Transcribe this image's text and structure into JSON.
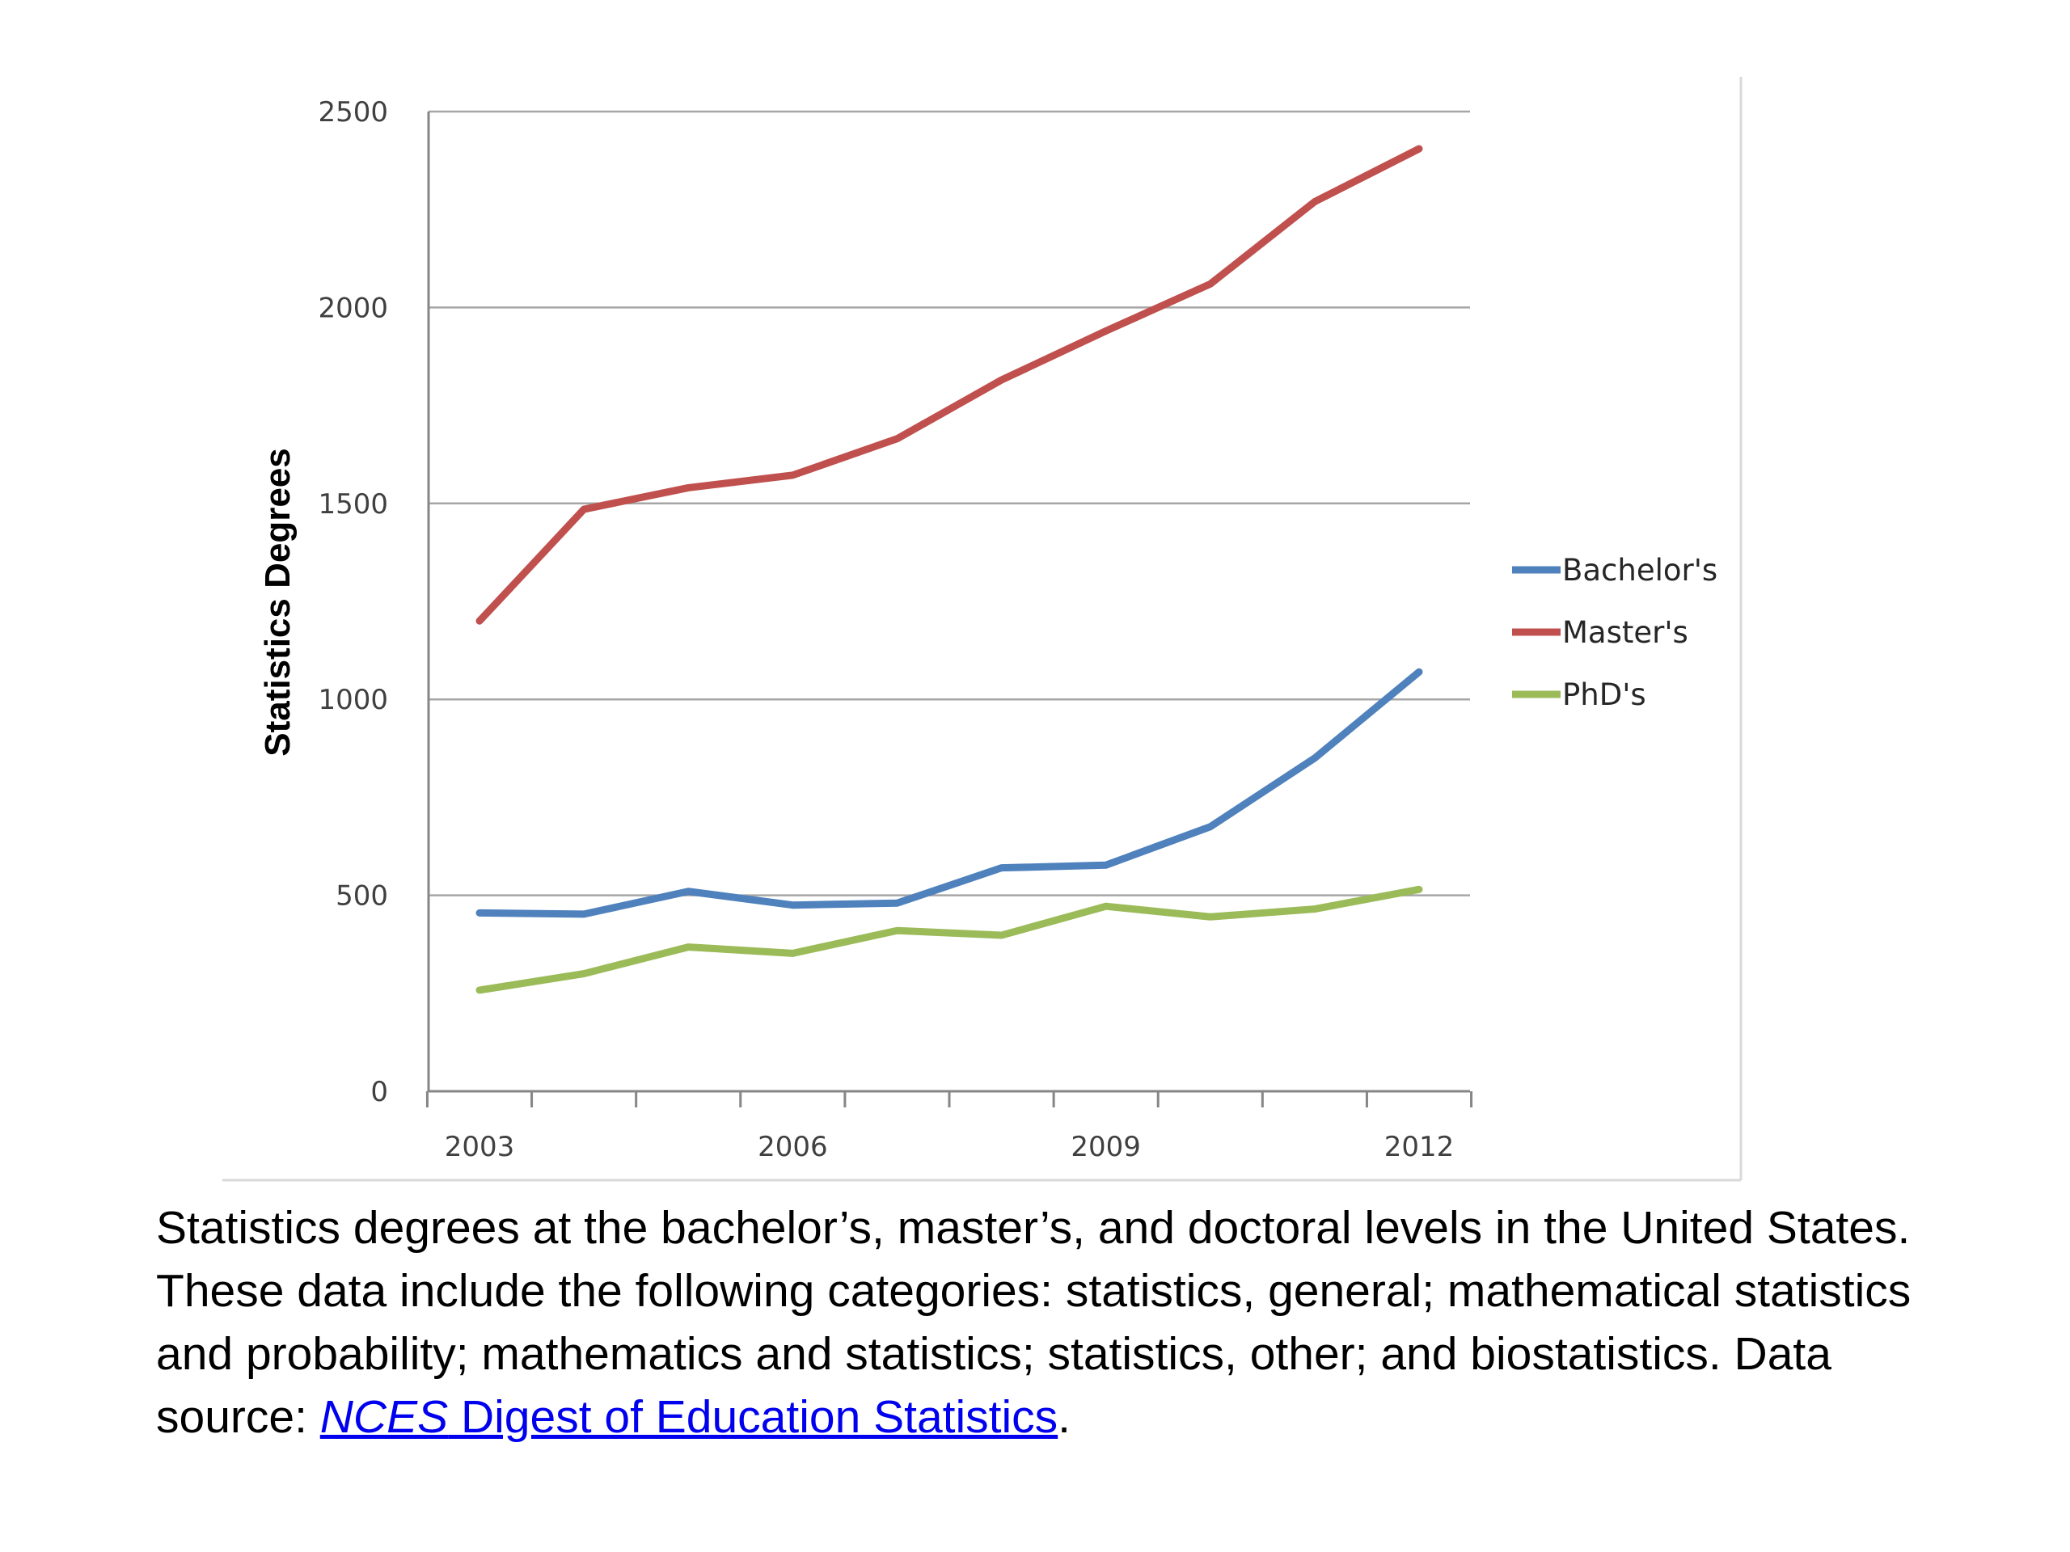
{
  "chart_data": {
    "type": "line",
    "x": [
      2003,
      2004,
      2005,
      2006,
      2007,
      2008,
      2009,
      2010,
      2011,
      2012
    ],
    "x_tick_labels": [
      "2003",
      "2006",
      "2009",
      "2012"
    ],
    "y_tick_labels": [
      "0",
      "500",
      "1000",
      "1500",
      "2000",
      "2500"
    ],
    "ylabel": "Statistics Degrees",
    "xlabel": "",
    "title": "",
    "ylim": [
      0,
      2500
    ],
    "grid": "horizontal",
    "legend_position": "right",
    "series": [
      {
        "name": "Bachelor's",
        "color": "#4f81bd",
        "values": [
          455,
          452,
          510,
          475,
          480,
          570,
          577,
          675,
          850,
          1070
        ]
      },
      {
        "name": "Master's",
        "color": "#c0504d",
        "values": [
          1200,
          1485,
          1540,
          1572,
          1665,
          1815,
          1940,
          2060,
          2270,
          2405
        ]
      },
      {
        "name": "PhD's",
        "color": "#9bbb59",
        "values": [
          258,
          300,
          368,
          352,
          410,
          398,
          472,
          445,
          465,
          515
        ]
      }
    ]
  },
  "caption": {
    "text_before_link": "Statistics degrees at the bachelor’s, master’s, and doctoral levels in the United States. These data include the following categories: statistics, general; mathematical statistics and probability; mathematics and statistics; statistics, other; and biostatistics. Data source: ",
    "link_italic": "NCES",
    "link_rest": " Digest of Education Statistics",
    "text_after_link": "."
  }
}
